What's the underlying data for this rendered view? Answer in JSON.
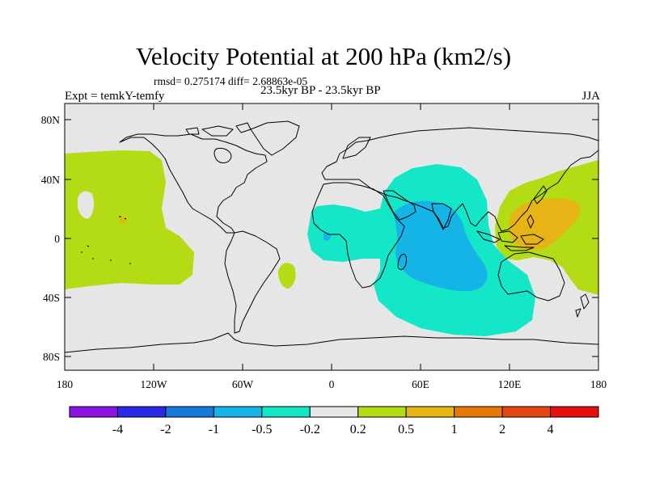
{
  "header": {
    "title": "Velocity Potential at 200 hPa (km2/s)",
    "stats": "rmsd= 0.275174 diff= 2.68863e-05",
    "experiment": "Expt = temkY-temfy",
    "period": "23.5kyr BP - 23.5kyr BP",
    "season": "JJA"
  },
  "map": {
    "background_color": "#e6e6e6",
    "lat_ticks": [
      "80N",
      "40N",
      "0",
      "40S",
      "80S"
    ],
    "lon_ticks": [
      "180",
      "120W",
      "60W",
      "0",
      "60E",
      "120E",
      "180"
    ]
  },
  "colorbar": {
    "colors": [
      "#8a14e6",
      "#2828e6",
      "#1478dc",
      "#14b4e6",
      "#14e6c8",
      "#e6e6e6",
      "#b4dc14",
      "#e6b414",
      "#e6780a",
      "#e64614",
      "#e60f0f"
    ],
    "labels": [
      "-4",
      "-2",
      "-1",
      "-0.5",
      "-0.2",
      "0.2",
      "0.5",
      "1",
      "2",
      "4"
    ]
  }
}
